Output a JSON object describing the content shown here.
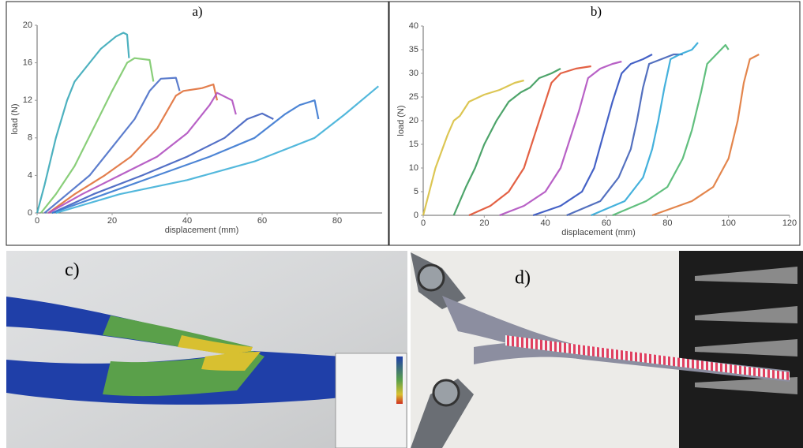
{
  "chart_data": [
    {
      "type": "line",
      "title": "a)",
      "x_label": "displacement (mm)",
      "y_label": "load (N)",
      "xlim": [
        0,
        92
      ],
      "ylim": [
        0,
        20
      ],
      "xticks": [
        0,
        20,
        40,
        60,
        80
      ],
      "yticks": [
        0,
        4,
        8,
        12,
        16,
        20
      ],
      "grid": false,
      "series": [
        {
          "color": "#3aa8b8",
          "x": [
            0,
            2,
            5,
            8,
            10,
            13,
            17,
            21,
            23,
            24,
            24.5
          ],
          "values": [
            0,
            3,
            8,
            12,
            14,
            15.5,
            17.5,
            18.8,
            19.2,
            19,
            16.5
          ]
        },
        {
          "color": "#7cc96a",
          "x": [
            1,
            5,
            10,
            15,
            20,
            24,
            26,
            30,
            31
          ],
          "values": [
            0,
            2,
            5,
            9,
            13,
            16,
            16.5,
            16.3,
            14
          ]
        },
        {
          "color": "#4a6fc8",
          "x": [
            2,
            8,
            14,
            20,
            26,
            30,
            33,
            37,
            38
          ],
          "values": [
            0,
            2,
            4,
            7,
            10,
            13,
            14.3,
            14.4,
            13
          ]
        },
        {
          "color": "#e0703a",
          "x": [
            3,
            10,
            18,
            25,
            32,
            37,
            39,
            44,
            47,
            48
          ],
          "values": [
            0,
            2,
            4,
            6,
            9,
            12.5,
            13,
            13.3,
            13.7,
            12
          ]
        },
        {
          "color": "#b050c0",
          "x": [
            3,
            12,
            22,
            32,
            40,
            46,
            48,
            52,
            53
          ],
          "values": [
            0,
            2,
            4,
            6,
            8.5,
            11.5,
            12.8,
            12,
            10.5
          ]
        },
        {
          "color": "#4060c0",
          "x": [
            4,
            15,
            28,
            40,
            50,
            56,
            60,
            63
          ],
          "values": [
            0,
            2,
            4,
            6,
            8,
            10,
            10.6,
            10
          ]
        },
        {
          "color": "#3a78d0",
          "x": [
            4,
            18,
            32,
            46,
            58,
            66,
            70,
            74,
            75
          ],
          "values": [
            0,
            2,
            4,
            6,
            8,
            10.5,
            11.5,
            12,
            10
          ]
        },
        {
          "color": "#40b0d8",
          "x": [
            5,
            22,
            40,
            58,
            74,
            82,
            88,
            91
          ],
          "values": [
            0,
            2,
            3.5,
            5.5,
            8,
            10.5,
            12.5,
            13.5
          ]
        }
      ]
    },
    {
      "type": "line",
      "title": "b)",
      "x_label": "displacement (mm)",
      "y_label": "load (N)",
      "xlim": [
        0,
        120
      ],
      "ylim": [
        0,
        40
      ],
      "xticks": [
        0,
        20,
        40,
        60,
        80,
        100,
        120
      ],
      "yticks": [
        0,
        5,
        10,
        15,
        20,
        25,
        30,
        35,
        40
      ],
      "grid": false,
      "series": [
        {
          "color": "#d8c040",
          "x": [
            0,
            4,
            8,
            10,
            12,
            15,
            20,
            25,
            30,
            33
          ],
          "values": [
            0,
            10,
            17,
            20,
            21,
            24,
            25.5,
            26.5,
            28,
            28.5
          ]
        },
        {
          "color": "#3a9a5a",
          "x": [
            10,
            12,
            14,
            17,
            20,
            24,
            28,
            32,
            35,
            38,
            42,
            45
          ],
          "values": [
            0,
            3,
            6,
            10,
            15,
            20,
            24,
            26,
            27,
            29,
            30,
            31
          ]
        },
        {
          "color": "#e05030",
          "x": [
            15,
            22,
            28,
            33,
            36,
            39,
            42,
            45,
            50,
            55
          ],
          "values": [
            0,
            2,
            5,
            10,
            16,
            22,
            28,
            30,
            31,
            31.5
          ]
        },
        {
          "color": "#b050c0",
          "x": [
            25,
            33,
            40,
            45,
            48,
            51,
            54,
            58,
            62,
            65
          ],
          "values": [
            0,
            2,
            5,
            10,
            16,
            22,
            29,
            31,
            32,
            32.5
          ]
        },
        {
          "color": "#3050c0",
          "x": [
            36,
            45,
            52,
            56,
            59,
            62,
            65,
            68,
            72,
            75
          ],
          "values": [
            0,
            2,
            5,
            10,
            17,
            24,
            30,
            32,
            33,
            34
          ]
        },
        {
          "color": "#4060b8",
          "x": [
            47,
            58,
            64,
            68,
            70,
            72,
            74,
            78,
            82,
            85
          ],
          "values": [
            0,
            3,
            8,
            14,
            20,
            27,
            32,
            33,
            34,
            34
          ]
        },
        {
          "color": "#30a8d8",
          "x": [
            55,
            66,
            72,
            75,
            77,
            79,
            81,
            84,
            88,
            90
          ],
          "values": [
            0,
            3,
            8,
            14,
            20,
            27,
            33,
            34,
            35,
            36.5
          ]
        },
        {
          "color": "#50b870",
          "x": [
            62,
            73,
            80,
            85,
            88,
            91,
            93,
            96,
            99,
            100
          ],
          "values": [
            0,
            3,
            6,
            12,
            18,
            26,
            32,
            34,
            36,
            35
          ]
        },
        {
          "color": "#e07838",
          "x": [
            75,
            88,
            95,
            100,
            103,
            105,
            107,
            110
          ],
          "values": [
            0,
            3,
            6,
            12,
            20,
            28,
            33,
            34
          ]
        }
      ]
    }
  ],
  "images": [
    {
      "label": "c)"
    },
    {
      "label": "d)"
    }
  ]
}
